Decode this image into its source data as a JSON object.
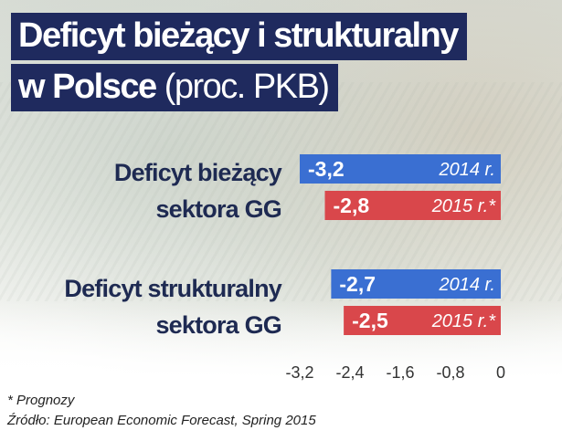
{
  "title": {
    "line1": "Deficyt bieżący i strukturalny",
    "line2_bold": "w Polsce",
    "line2_light": " (proc. PKB)"
  },
  "groups": [
    {
      "label_line1": "Deficyt bieżący",
      "label_line2": "sektora GG"
    },
    {
      "label_line1": "Deficyt strukturalny",
      "label_line2": "sektora GG"
    }
  ],
  "colors": {
    "year_2014": "#3a6fd2",
    "year_2015": "#d9474b",
    "title_bg": "#1f2a5e",
    "label_text": "#1e2a52"
  },
  "chart_data": {
    "type": "bar",
    "orientation": "horizontal",
    "categories": [
      "Deficyt bieżący sektora GG",
      "Deficyt strukturalny sektora GG"
    ],
    "series": [
      {
        "name": "2014 r.",
        "values": [
          -3.2,
          -2.7
        ],
        "value_labels": [
          "-3,2",
          "-2,7"
        ],
        "color": "#3a6fd2"
      },
      {
        "name": "2015 r.*",
        "values": [
          -2.8,
          -2.5
        ],
        "value_labels": [
          "-2,8",
          "-2,5"
        ],
        "color": "#d9474b"
      }
    ],
    "xlim": [
      -3.2,
      0
    ],
    "x_ticks": [
      -3.2,
      -2.4,
      -1.6,
      -0.8,
      0
    ],
    "x_tick_labels": [
      "-3,2",
      "-2,4",
      "-1,6",
      "-0,8",
      "0"
    ],
    "grid": false
  },
  "footnotes": {
    "note": "* Prognozy",
    "source": "Źródło: European Economic Forecast, Spring 2015"
  }
}
